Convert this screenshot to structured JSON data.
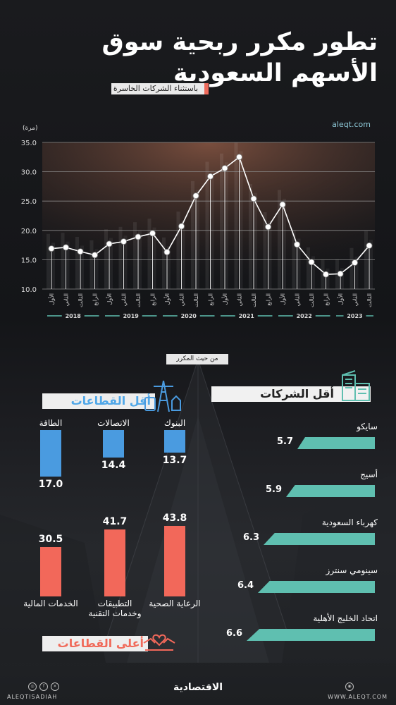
{
  "title": "تطور مكرر ربحية سوق الأسهم السعودية",
  "subtitle": "باستثناء الشركات الخاسرة",
  "brand_url": "aleqt.com",
  "unit": "(مرة)",
  "chart_data": {
    "type": "line",
    "ylim": [
      10,
      35
    ],
    "y_ticks": [
      "35.0",
      "30.0",
      "25.0",
      "20.0",
      "15.0",
      "10.0"
    ],
    "categories": [
      "الأول",
      "الثاني",
      "الثالث",
      "الرابع",
      "الأول",
      "الثاني",
      "الثالث",
      "الرابع",
      "الأول",
      "الثاني",
      "الثالث",
      "الرابع",
      "الأول",
      "الثاني",
      "الثالث",
      "الرابع",
      "الأول",
      "الثاني",
      "الثالث",
      "الرابع",
      "الأول",
      "الثاني",
      "الثالث"
    ],
    "years": [
      {
        "label": "2018",
        "from": 0,
        "to": 3
      },
      {
        "label": "2019",
        "from": 4,
        "to": 7
      },
      {
        "label": "2020",
        "from": 8,
        "to": 11
      },
      {
        "label": "2021",
        "from": 12,
        "to": 15
      },
      {
        "label": "2022",
        "from": 16,
        "to": 19
      },
      {
        "label": "2023",
        "from": 20,
        "to": 22
      }
    ],
    "values": [
      16.9,
      17.1,
      16.4,
      15.8,
      17.7,
      18.1,
      18.9,
      19.5,
      16.3,
      20.7,
      25.9,
      29.2,
      30.6,
      32.5,
      25.4,
      20.6,
      24.4,
      17.6,
      14.6,
      12.5,
      12.6,
      14.5,
      17.4
    ]
  },
  "multiple_caption": "من حيث المكرر",
  "lowest_sectors": {
    "title": "أقل القطاعات",
    "items": [
      {
        "name": "البنوك",
        "value": "13.7"
      },
      {
        "name": "الاتصالات",
        "value": "14.4"
      },
      {
        "name": "الطاقة",
        "value": "17.0"
      }
    ]
  },
  "highest_sectors": {
    "title": "أعلى القطاعات",
    "items": [
      {
        "name": "الرعاية الصحية",
        "value": "43.8"
      },
      {
        "name": "التطبيقات وخدمات التقنية",
        "value": "41.7"
      },
      {
        "name": "الخدمات المالية",
        "value": "30.5"
      }
    ]
  },
  "lowest_companies": {
    "title": "أقل الشركات",
    "items": [
      {
        "name": "سايكو",
        "value": "5.7"
      },
      {
        "name": "أسيج",
        "value": "5.9"
      },
      {
        "name": "كهرباء السعودية",
        "value": "6.3"
      },
      {
        "name": "سينومي سنترز",
        "value": "6.4"
      },
      {
        "name": "اتحاد الخليج الأهلية",
        "value": "6.6"
      }
    ]
  },
  "footer": {
    "handle": "ALEQTISADIAH",
    "logo": "الاقتصادية",
    "site": "WWW.ALEQT.COM"
  },
  "colors": {
    "line": "#ffffff",
    "blue": "#4a9be0",
    "coral": "#f2685a",
    "teal": "#5fbfb0"
  }
}
